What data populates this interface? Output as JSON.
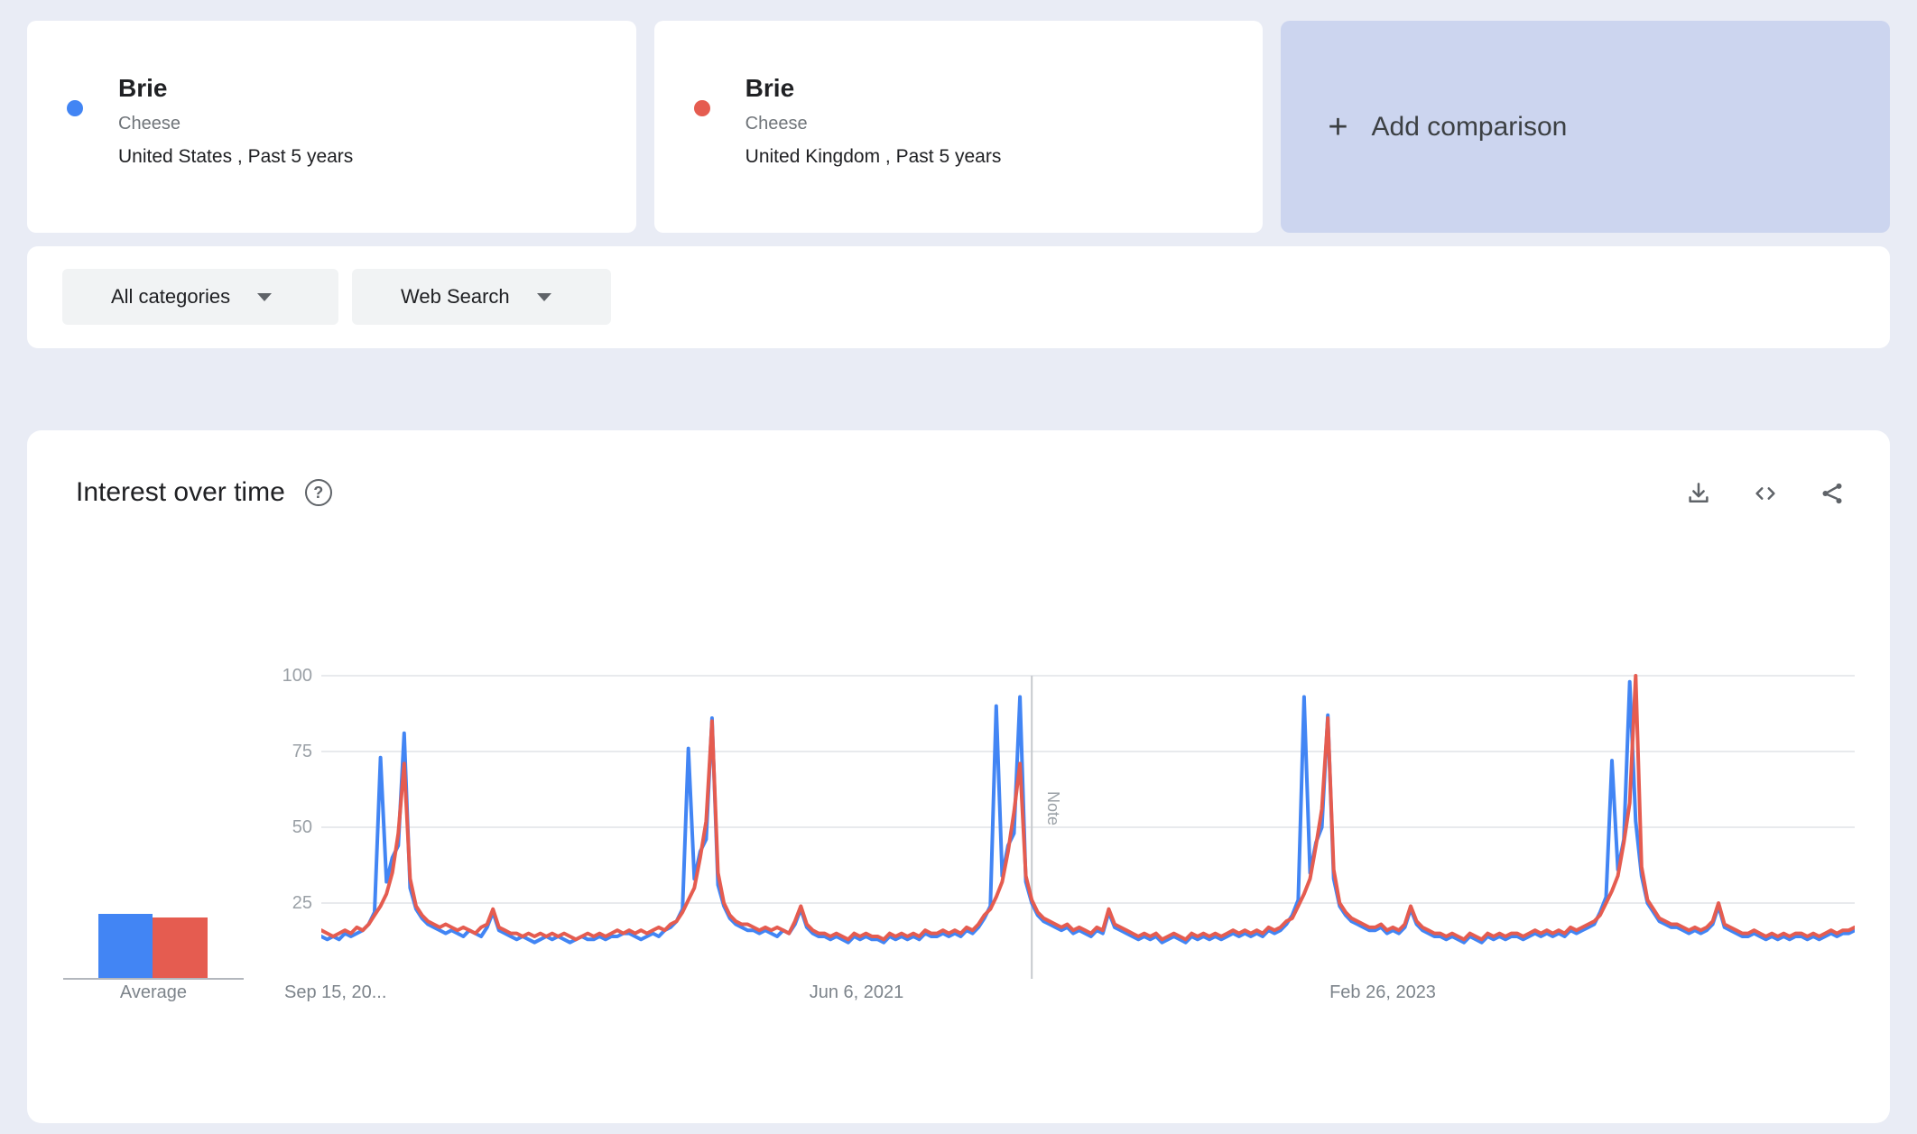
{
  "comparison_cards": [
    {
      "term": "Brie",
      "topic_type": "Cheese",
      "scope": "United States , Past 5 years",
      "color": "#4285f4"
    },
    {
      "term": "Brie",
      "topic_type": "Cheese",
      "scope": "United Kingdom , Past 5 years",
      "color": "#e55c50"
    }
  ],
  "add_comparison": {
    "plus_glyph": "+",
    "label": "Add comparison"
  },
  "filters": {
    "category": "All categories",
    "search_type": "Web Search"
  },
  "widget": {
    "title": "Interest over time",
    "help_glyph": "?"
  },
  "average": {
    "label": "Average",
    "values": [
      21,
      20
    ]
  },
  "chart_data": {
    "type": "line",
    "title": "Interest over time",
    "x_axis_labels": [
      "Sep 15, 20...",
      "Jun 6, 2021",
      "Feb 26, 2023"
    ],
    "y_ticks": [
      25,
      50,
      75,
      100
    ],
    "ylim": [
      0,
      100
    ],
    "grid": true,
    "legend": false,
    "note_marker": {
      "label": "Note",
      "index": 120
    },
    "series": [
      {
        "name": "Brie · United States",
        "color": "#4285f4",
        "values": [
          14,
          13,
          14,
          13,
          15,
          14,
          15,
          16,
          18,
          22,
          73,
          32,
          40,
          44,
          81,
          30,
          23,
          20,
          18,
          17,
          16,
          15,
          16,
          15,
          14,
          16,
          15,
          14,
          17,
          22,
          16,
          15,
          14,
          13,
          14,
          13,
          12,
          13,
          14,
          13,
          14,
          13,
          12,
          13,
          14,
          13,
          13,
          14,
          13,
          14,
          14,
          15,
          15,
          14,
          13,
          14,
          15,
          14,
          16,
          17,
          19,
          23,
          76,
          33,
          42,
          46,
          86,
          31,
          24,
          20,
          18,
          17,
          16,
          16,
          15,
          16,
          15,
          14,
          16,
          15,
          18,
          23,
          17,
          15,
          14,
          14,
          13,
          14,
          13,
          12,
          14,
          13,
          14,
          13,
          13,
          12,
          14,
          13,
          14,
          13,
          14,
          13,
          15,
          14,
          14,
          15,
          14,
          15,
          14,
          16,
          15,
          17,
          20,
          24,
          90,
          34,
          44,
          48,
          93,
          32,
          25,
          21,
          19,
          18,
          17,
          16,
          17,
          15,
          16,
          15,
          14,
          16,
          15,
          22,
          17,
          16,
          15,
          14,
          13,
          14,
          13,
          14,
          12,
          13,
          14,
          13,
          12,
          14,
          13,
          14,
          13,
          14,
          13,
          14,
          15,
          14,
          15,
          14,
          15,
          14,
          16,
          15,
          16,
          18,
          21,
          26,
          93,
          35,
          45,
          50,
          87,
          33,
          24,
          21,
          19,
          18,
          17,
          16,
          16,
          17,
          15,
          16,
          15,
          17,
          23,
          18,
          16,
          15,
          14,
          14,
          13,
          14,
          13,
          12,
          14,
          13,
          12,
          14,
          13,
          14,
          13,
          14,
          14,
          13,
          14,
          15,
          14,
          15,
          14,
          15,
          14,
          16,
          15,
          16,
          17,
          18,
          22,
          27,
          72,
          36,
          46,
          98,
          52,
          34,
          25,
          22,
          19,
          18,
          17,
          17,
          16,
          15,
          16,
          15,
          16,
          18,
          24,
          17,
          16,
          15,
          14,
          14,
          15,
          14,
          13,
          14,
          13,
          14,
          13,
          14,
          14,
          13,
          14,
          13,
          14,
          15,
          14,
          15,
          15,
          16
        ]
      },
      {
        "name": "Brie · United Kingdom",
        "color": "#e55c50",
        "values": [
          16,
          15,
          14,
          15,
          16,
          15,
          17,
          16,
          18,
          21,
          24,
          28,
          35,
          48,
          71,
          33,
          24,
          21,
          19,
          18,
          17,
          18,
          17,
          16,
          17,
          16,
          15,
          17,
          18,
          23,
          17,
          16,
          15,
          15,
          14,
          15,
          14,
          15,
          14,
          15,
          14,
          15,
          14,
          13,
          14,
          15,
          14,
          15,
          14,
          15,
          16,
          15,
          16,
          15,
          16,
          15,
          16,
          17,
          16,
          18,
          19,
          22,
          26,
          30,
          40,
          52,
          85,
          35,
          25,
          21,
          19,
          18,
          18,
          17,
          16,
          17,
          16,
          17,
          16,
          15,
          19,
          24,
          18,
          16,
          15,
          15,
          14,
          15,
          14,
          13,
          15,
          14,
          15,
          14,
          14,
          13,
          15,
          14,
          15,
          14,
          15,
          14,
          16,
          15,
          15,
          16,
          15,
          16,
          15,
          17,
          16,
          18,
          21,
          23,
          27,
          32,
          42,
          55,
          71,
          34,
          26,
          22,
          20,
          19,
          18,
          17,
          18,
          16,
          17,
          16,
          15,
          17,
          16,
          23,
          18,
          17,
          16,
          15,
          14,
          15,
          14,
          15,
          13,
          14,
          15,
          14,
          13,
          15,
          14,
          15,
          14,
          15,
          14,
          15,
          16,
          15,
          16,
          15,
          16,
          15,
          17,
          16,
          17,
          19,
          20,
          24,
          28,
          33,
          44,
          56,
          86,
          36,
          25,
          22,
          20,
          19,
          18,
          17,
          17,
          18,
          16,
          17,
          16,
          18,
          24,
          19,
          17,
          16,
          15,
          15,
          14,
          15,
          14,
          13,
          15,
          14,
          13,
          15,
          14,
          15,
          14,
          15,
          15,
          14,
          15,
          16,
          15,
          16,
          15,
          16,
          15,
          17,
          16,
          17,
          18,
          19,
          21,
          25,
          29,
          34,
          45,
          58,
          100,
          37,
          26,
          23,
          20,
          19,
          18,
          18,
          17,
          16,
          17,
          16,
          17,
          19,
          25,
          18,
          17,
          16,
          15,
          15,
          16,
          15,
          14,
          15,
          14,
          15,
          14,
          15,
          15,
          14,
          15,
          14,
          15,
          16,
          15,
          16,
          16,
          17
        ]
      }
    ]
  }
}
